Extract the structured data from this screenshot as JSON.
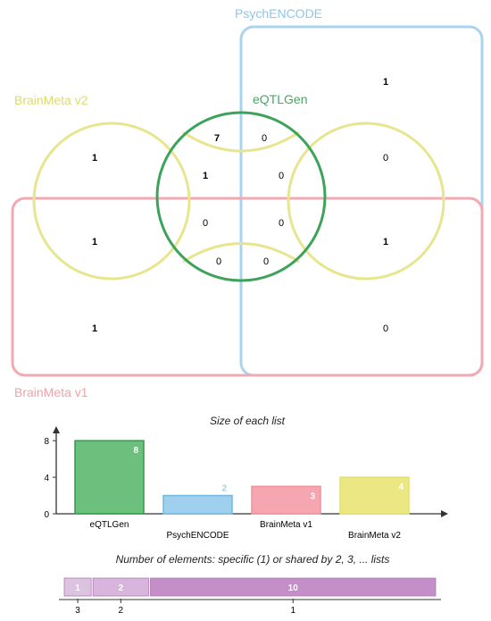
{
  "colors": {
    "eqtlgen": "#2e9b4a",
    "psychencode": "#74b9e0",
    "brainmeta_v1": "#f0919b",
    "brainmeta_v2": "#e4e070"
  },
  "venn": {
    "sets": [
      {
        "id": "psychencode",
        "label": "PsychENCODE"
      },
      {
        "id": "brainmeta_v2",
        "label": "BrainMeta v2"
      },
      {
        "id": "eqtlgen",
        "label": "eQTLGen"
      },
      {
        "id": "brainmeta_v1",
        "label": "BrainMeta v1"
      }
    ],
    "regions": [
      "1",
      "1",
      "7",
      "0",
      "1",
      "0",
      "0",
      "1",
      "0",
      "0",
      "1",
      "0",
      "0",
      "1",
      "0"
    ]
  },
  "chart_data": [
    {
      "type": "bar",
      "title": "Size of each list",
      "categories": [
        "eQTLGen",
        "PsychENCODE",
        "BrainMeta v1",
        "BrainMeta v2"
      ],
      "values": [
        8,
        2,
        3,
        4
      ],
      "value_labels": [
        "8",
        "2",
        "3",
        "4"
      ],
      "y_ticks": [
        "0",
        "4",
        "8"
      ],
      "ylim": [
        0,
        9
      ],
      "colors": [
        "#6cbf7c",
        "#9fd0ee",
        "#f6a6b0",
        "#ebe884"
      ],
      "border_colors": [
        "#2e9b4a",
        "#74b9e0",
        "#f0919b",
        "#e4e070"
      ]
    },
    {
      "type": "bar",
      "orientation": "horizontal-stacked",
      "title": "Number of elements: specific (1) or shared by 2, 3, ... lists",
      "categories": [
        "3",
        "2",
        "1"
      ],
      "values": [
        1,
        2,
        10
      ],
      "value_labels": [
        "1",
        "2",
        "10"
      ],
      "colors": [
        "#dcc3df",
        "#d7b5dc",
        "#c48ec9"
      ]
    }
  ]
}
